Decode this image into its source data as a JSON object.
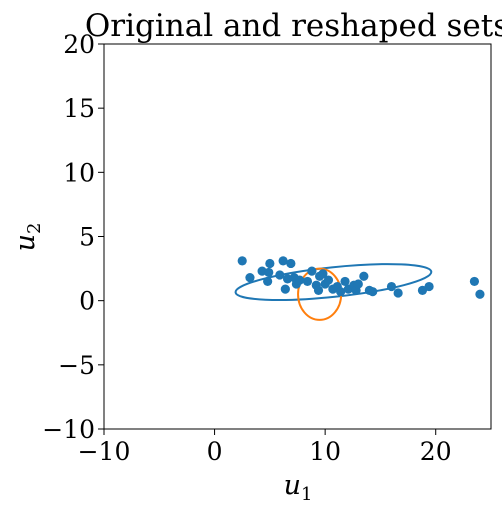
{
  "chart_data": {
    "type": "scatter",
    "title": "Original and reshaped sets",
    "xlabel": "u",
    "xlabel_sub": "1",
    "ylabel": "u",
    "ylabel_sub": "2",
    "xlim": [
      -10,
      25
    ],
    "ylim": [
      -10,
      20
    ],
    "xticks": [
      -10,
      0,
      10,
      20
    ],
    "yticks": [
      -10,
      -5,
      0,
      5,
      10,
      15,
      20
    ],
    "xtick_labels": [
      "−10",
      "0",
      "10",
      "20"
    ],
    "ytick_labels": [
      "−10",
      "−5",
      "0",
      "5",
      "10",
      "15",
      "20"
    ],
    "grid": false,
    "colors": {
      "points": "#1f77b4",
      "original_set": "#1f77b4",
      "reshaped_set": "#ff7f0e"
    },
    "points": [
      {
        "x": 2.5,
        "y": 3.1
      },
      {
        "x": 3.2,
        "y": 1.8
      },
      {
        "x": 4.3,
        "y": 2.3
      },
      {
        "x": 4.8,
        "y": 1.5
      },
      {
        "x": 4.9,
        "y": 2.2
      },
      {
        "x": 5.0,
        "y": 2.9
      },
      {
        "x": 5.9,
        "y": 2.0
      },
      {
        "x": 6.2,
        "y": 3.1
      },
      {
        "x": 6.4,
        "y": 0.9
      },
      {
        "x": 6.6,
        "y": 1.7
      },
      {
        "x": 6.9,
        "y": 2.9
      },
      {
        "x": 7.2,
        "y": 1.8
      },
      {
        "x": 7.4,
        "y": 1.3
      },
      {
        "x": 7.7,
        "y": 1.6
      },
      {
        "x": 8.4,
        "y": 1.5
      },
      {
        "x": 8.8,
        "y": 2.3
      },
      {
        "x": 9.2,
        "y": 1.2
      },
      {
        "x": 9.4,
        "y": 0.8
      },
      {
        "x": 9.5,
        "y": 1.9
      },
      {
        "x": 9.8,
        "y": 2.1
      },
      {
        "x": 10.0,
        "y": 1.3
      },
      {
        "x": 10.3,
        "y": 1.6
      },
      {
        "x": 10.7,
        "y": 0.9
      },
      {
        "x": 11.1,
        "y": 1.1
      },
      {
        "x": 11.4,
        "y": 0.7
      },
      {
        "x": 11.8,
        "y": 1.5
      },
      {
        "x": 12.1,
        "y": 0.9
      },
      {
        "x": 12.6,
        "y": 1.2
      },
      {
        "x": 12.8,
        "y": 0.8
      },
      {
        "x": 13.0,
        "y": 1.3
      },
      {
        "x": 13.5,
        "y": 1.9
      },
      {
        "x": 14.0,
        "y": 0.8
      },
      {
        "x": 14.3,
        "y": 0.7
      },
      {
        "x": 16.0,
        "y": 1.1
      },
      {
        "x": 16.6,
        "y": 0.6
      },
      {
        "x": 18.8,
        "y": 0.8
      },
      {
        "x": 19.4,
        "y": 1.1
      },
      {
        "x": 23.5,
        "y": 1.5
      },
      {
        "x": 24.0,
        "y": 0.5
      }
    ],
    "original_set": {
      "shape": "ellipse",
      "cx": 10.75,
      "cy": 1.45,
      "rx": 8.9,
      "ry": 1.15,
      "rotation_deg": -6
    },
    "reshaped_set": {
      "shape": "ellipse",
      "cx": 9.5,
      "cy": 0.5,
      "rx": 1.95,
      "ry": 2.0,
      "rotation_deg": 0
    }
  }
}
